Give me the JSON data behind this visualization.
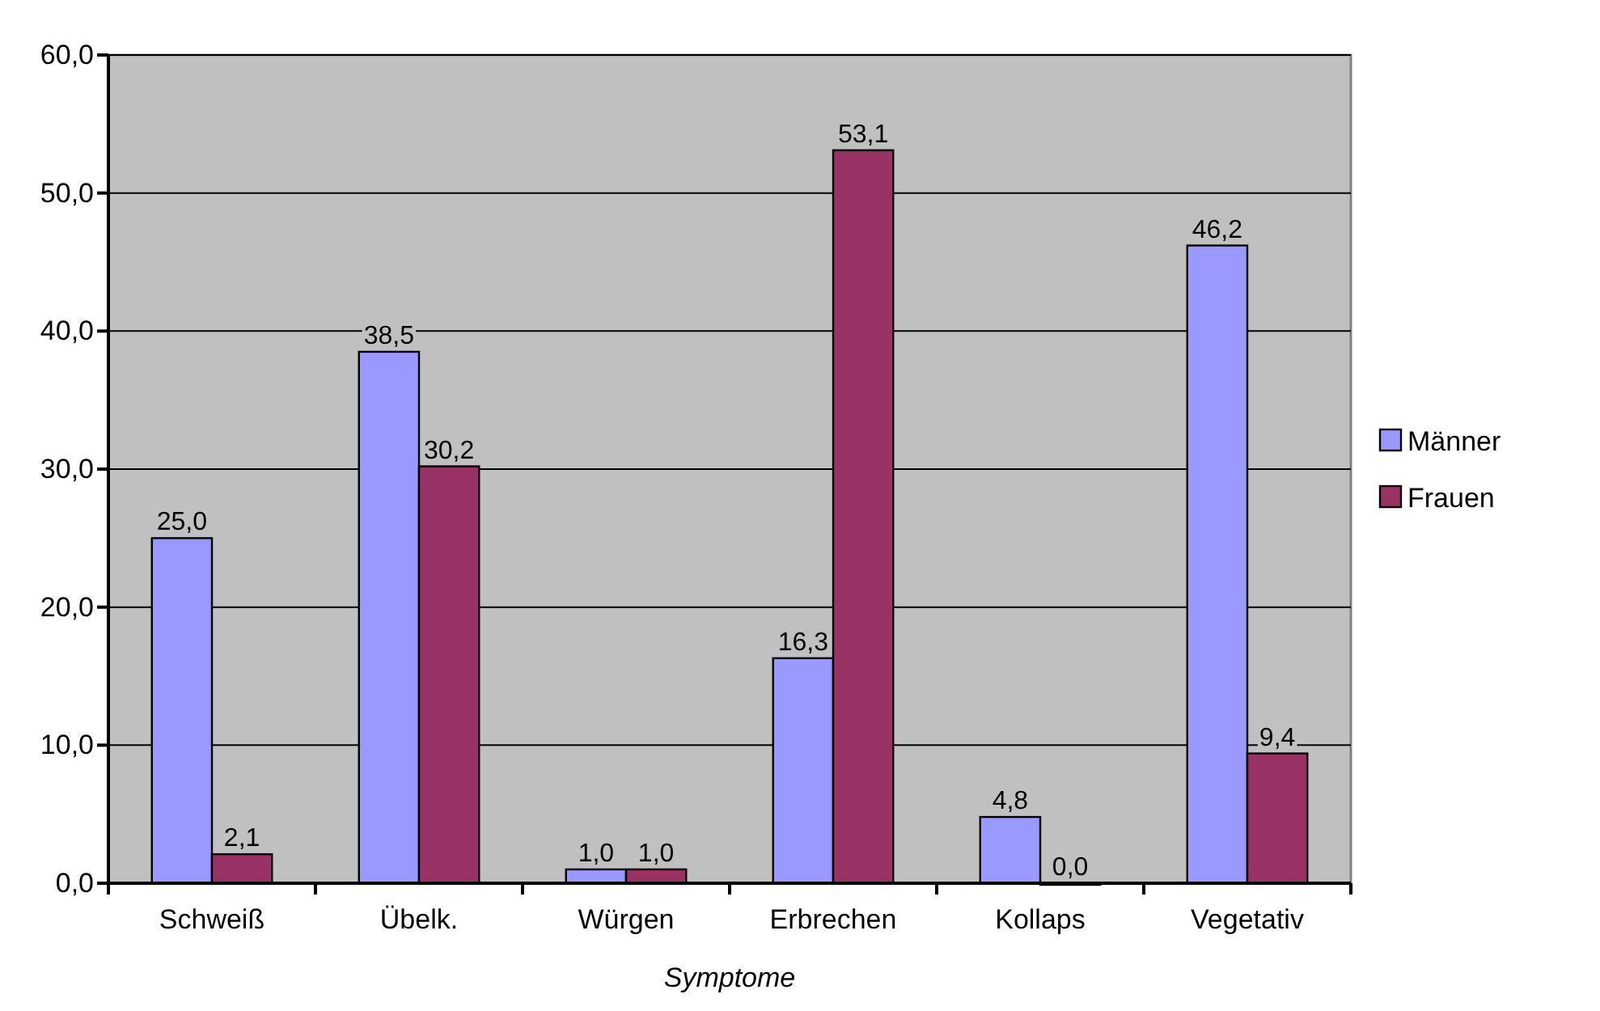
{
  "chart_data": {
    "type": "bar",
    "xlabel": "Symptome",
    "categories": [
      "Schweiß",
      "Übelk.",
      "Würgen",
      "Erbrechen",
      "Kollaps",
      "Vegetativ"
    ],
    "series": [
      {
        "name": "Männer",
        "color": "#9999ff",
        "values": [
          25.0,
          38.5,
          1.0,
          16.3,
          4.8,
          46.2
        ],
        "value_labels": [
          "25,0",
          "38,5",
          "1,0",
          "16,3",
          "4,8",
          "46,2"
        ]
      },
      {
        "name": "Frauen",
        "color": "#993366",
        "values": [
          2.1,
          30.2,
          1.0,
          53.1,
          0.0,
          9.4
        ],
        "value_labels": [
          "2,1",
          "30,2",
          "1,0",
          "53,1",
          "0,0",
          "9,4"
        ]
      }
    ],
    "ylim": [
      0,
      60
    ],
    "yticks": [
      {
        "value": 0,
        "label": "0,0"
      },
      {
        "value": 10,
        "label": "10,0"
      },
      {
        "value": 20,
        "label": "20,0"
      },
      {
        "value": 30,
        "label": "30,0"
      },
      {
        "value": 40,
        "label": "40,0"
      },
      {
        "value": 50,
        "label": "50,0"
      },
      {
        "value": 60,
        "label": "60,0"
      }
    ],
    "grid": "y",
    "legend": "right"
  }
}
